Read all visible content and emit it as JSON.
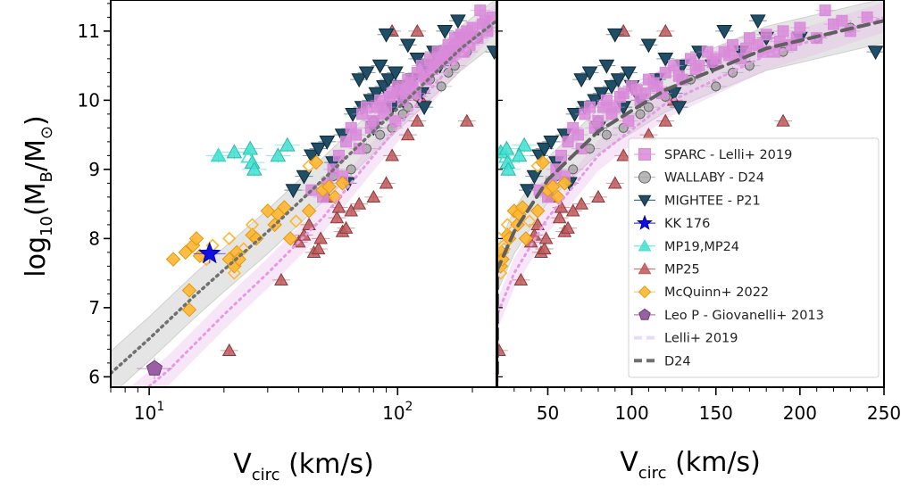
{
  "figure": {
    "ylabel_main": "log",
    "ylabel_sub": "10",
    "ylabel_paren": "(M",
    "ylabel_b": "B",
    "ylabel_slash": "/M",
    "ylabel_sun": "⊙",
    "ylabel_close": ")"
  },
  "chart_data": [
    {
      "type": "scatter",
      "panel": "left",
      "xscale": "log",
      "xlim": [
        7,
        250
      ],
      "ylim": [
        5.85,
        11.45
      ],
      "xlabel_main": "V",
      "xlabel_sub": "circ",
      "xlabel_unit": " (km/s)",
      "xticks": [
        10,
        100
      ],
      "xtick_labels": [
        {
          "base": "10",
          "exp": "1"
        },
        {
          "base": "10",
          "exp": "2"
        }
      ],
      "yticks": [
        6,
        7,
        8,
        9,
        10,
        11
      ],
      "ytick_labels": [
        "6",
        "7",
        "8",
        "9",
        "10",
        "11"
      ],
      "grid": false
    },
    {
      "type": "scatter",
      "panel": "right",
      "xscale": "linear",
      "xlim": [
        20,
        250
      ],
      "ylim": [
        5.85,
        11.45
      ],
      "xlabel_main": "V",
      "xlabel_sub": "circ",
      "xlabel_unit": " (km/s)",
      "xticks": [
        50,
        100,
        150,
        200,
        250
      ],
      "xtick_labels": [
        "50",
        "100",
        "150",
        "200",
        "250"
      ],
      "grid": false,
      "legend_position": "lower-right"
    }
  ],
  "series": [
    {
      "name": "SPARC - Lelli+ 2019",
      "marker": "square",
      "color": "#d98ad9"
    },
    {
      "name": "WALLABY - D24",
      "marker": "circle",
      "color": "#a6a6a6"
    },
    {
      "name": "MIGHTEE - P21",
      "marker": "triangle-down",
      "color": "#1f4e66"
    },
    {
      "name": "KK 176",
      "marker": "star",
      "color": "#1010e0"
    },
    {
      "name": "MP19,MP24",
      "marker": "triangle-up",
      "color": "#40e0d0"
    },
    {
      "name": "MP25",
      "marker": "triangle-up",
      "color": "#c0585a"
    },
    {
      "name": "McQuinn+ 2022",
      "marker": "diamond",
      "color": "#ffb733"
    },
    {
      "name": "Leo P - Giovanelli+ 2013",
      "marker": "pentagon",
      "color": "#9b5fa3"
    },
    {
      "name": "Lelli+ 2019",
      "marker": "dashed-line",
      "color": "#e6dcf5"
    },
    {
      "name": "D24",
      "marker": "dashed-line",
      "color": "#707070"
    }
  ],
  "data_points": {
    "kk176": [
      [
        17.5,
        7.78
      ]
    ],
    "leop": [
      [
        10.5,
        6.12
      ]
    ],
    "mp19": [
      [
        19,
        9.2
      ],
      [
        22,
        9.25
      ],
      [
        25.5,
        9.3
      ],
      [
        26,
        9.1
      ],
      [
        26.5,
        9.0
      ],
      [
        36,
        9.35
      ],
      [
        33,
        9.2
      ]
    ],
    "mp19_open": [
      [
        19,
        9.2
      ],
      [
        25,
        9.18
      ]
    ],
    "mcquinn": [
      [
        12.5,
        7.7
      ],
      [
        14,
        7.8
      ],
      [
        14.5,
        7.25
      ],
      [
        14.5,
        6.97
      ],
      [
        15,
        7.9
      ],
      [
        15.5,
        8.0
      ],
      [
        16,
        7.75
      ],
      [
        21,
        7.7
      ],
      [
        22,
        7.6
      ],
      [
        22.5,
        7.8
      ],
      [
        23,
        7.7
      ],
      [
        26,
        8.05
      ],
      [
        27,
        8.0
      ],
      [
        30,
        8.4
      ],
      [
        32,
        8.2
      ],
      [
        33,
        8.35
      ],
      [
        35,
        8.45
      ],
      [
        37,
        8.0
      ],
      [
        44,
        8.4
      ],
      [
        47,
        9.1
      ],
      [
        50,
        8.7
      ],
      [
        53,
        8.75
      ],
      [
        56,
        8.6
      ],
      [
        60,
        8.8
      ]
    ],
    "mcquinn_open": [
      [
        17,
        7.7
      ],
      [
        18,
        7.9
      ],
      [
        21,
        8.0
      ],
      [
        22,
        7.5
      ],
      [
        24,
        7.85
      ],
      [
        26,
        8.2
      ],
      [
        39,
        8.25
      ],
      [
        44,
        9.05
      ]
    ],
    "mp25": [
      [
        21,
        6.38
      ],
      [
        34,
        7.4
      ],
      [
        40,
        7.95
      ],
      [
        42,
        8.05
      ],
      [
        44,
        8.2
      ],
      [
        46,
        7.8
      ],
      [
        48,
        7.85
      ],
      [
        49,
        8.0
      ],
      [
        52,
        8.6
      ],
      [
        57,
        8.3
      ],
      [
        58,
        8.45
      ],
      [
        60,
        8.1
      ],
      [
        62,
        8.15
      ],
      [
        65,
        8.4
      ],
      [
        70,
        8.5
      ],
      [
        80,
        8.6
      ],
      [
        90,
        8.8
      ],
      [
        95,
        9.2
      ],
      [
        110,
        9.5
      ],
      [
        120,
        9.7
      ],
      [
        190,
        9.7
      ],
      [
        120,
        11.0
      ],
      [
        95,
        11.0
      ],
      [
        125,
        10.0
      ]
    ],
    "mightee": [
      [
        38,
        8.7
      ],
      [
        42,
        8.9
      ],
      [
        45,
        9.2
      ],
      [
        48,
        9.3
      ],
      [
        52,
        9.4
      ],
      [
        55,
        9.1
      ],
      [
        60,
        9.5
      ],
      [
        63,
        8.8
      ],
      [
        66,
        9.8
      ],
      [
        70,
        10.3
      ],
      [
        72,
        9.9
      ],
      [
        75,
        10.4
      ],
      [
        78,
        10.0
      ],
      [
        80,
        9.6
      ],
      [
        82,
        10.1
      ],
      [
        85,
        10.5
      ],
      [
        88,
        10.2
      ],
      [
        90,
        10.95
      ],
      [
        92,
        10.3
      ],
      [
        95,
        9.9
      ],
      [
        98,
        10.4
      ],
      [
        100,
        10.2
      ],
      [
        105,
        10.0
      ],
      [
        110,
        10.8
      ],
      [
        115,
        10.3
      ],
      [
        120,
        10.6
      ],
      [
        125,
        10.1
      ],
      [
        128,
        9.9
      ],
      [
        130,
        10.5
      ],
      [
        140,
        10.7
      ],
      [
        148,
        10.5
      ],
      [
        155,
        11.0
      ],
      [
        165,
        10.7
      ],
      [
        175,
        11.15
      ],
      [
        180,
        10.9
      ],
      [
        200,
        10.9
      ],
      [
        245,
        10.7
      ]
    ],
    "wallaby": [
      [
        55,
        8.9
      ],
      [
        65,
        9.0
      ],
      [
        75,
        9.3
      ],
      [
        85,
        9.5
      ],
      [
        95,
        9.6
      ],
      [
        110,
        9.9
      ],
      [
        120,
        10.05
      ],
      [
        135,
        10.3
      ],
      [
        150,
        10.2
      ],
      [
        170,
        10.5
      ],
      [
        190,
        10.7
      ],
      [
        210,
        10.9
      ],
      [
        230,
        11.05
      ],
      [
        80,
        9.7
      ],
      [
        105,
        9.8
      ],
      [
        160,
        10.4
      ]
    ],
    "sparc": [
      [
        45,
        8.7
      ],
      [
        50,
        8.6
      ],
      [
        55,
        9.0
      ],
      [
        58,
        9.2
      ],
      [
        62,
        9.4
      ],
      [
        65,
        9.6
      ],
      [
        68,
        9.5
      ],
      [
        72,
        9.8
      ],
      [
        75,
        9.9
      ],
      [
        80,
        9.7
      ],
      [
        85,
        10.0
      ],
      [
        90,
        9.9
      ],
      [
        95,
        10.1
      ],
      [
        100,
        10.2
      ],
      [
        105,
        10.0
      ],
      [
        110,
        10.3
      ],
      [
        115,
        10.2
      ],
      [
        120,
        10.4
      ],
      [
        125,
        10.5
      ],
      [
        130,
        10.3
      ],
      [
        135,
        10.6
      ],
      [
        140,
        10.5
      ],
      [
        145,
        10.7
      ],
      [
        150,
        10.6
      ],
      [
        155,
        10.7
      ],
      [
        160,
        10.8
      ],
      [
        165,
        10.6
      ],
      [
        170,
        10.9
      ],
      [
        175,
        10.8
      ],
      [
        180,
        10.95
      ],
      [
        185,
        10.7
      ],
      [
        190,
        11.0
      ],
      [
        195,
        10.8
      ],
      [
        200,
        11.05
      ],
      [
        210,
        10.9
      ],
      [
        220,
        11.1
      ],
      [
        230,
        11.0
      ],
      [
        240,
        11.2
      ],
      [
        215,
        11.3
      ],
      [
        225,
        11.15
      ],
      [
        70,
        9.3
      ],
      [
        78,
        9.6
      ],
      [
        88,
        9.8
      ],
      [
        98,
        9.7
      ],
      [
        108,
        10.1
      ],
      [
        118,
        10.1
      ],
      [
        128,
        10.35
      ],
      [
        138,
        10.45
      ],
      [
        148,
        10.55
      ],
      [
        158,
        10.65
      ],
      [
        168,
        10.75
      ],
      [
        178,
        10.7
      ],
      [
        188,
        10.85
      ],
      [
        198,
        10.9
      ],
      [
        60,
        8.9
      ],
      [
        52,
        8.8
      ],
      [
        83,
        9.9
      ],
      [
        93,
        10.05
      ],
      [
        103,
        10.15
      ],
      [
        113,
        10.25
      ]
    ],
    "lelli_line": [
      [
        7,
        5.4
      ],
      [
        12,
        6.1
      ],
      [
        20,
        6.9
      ],
      [
        30,
        7.5
      ],
      [
        50,
        8.3
      ],
      [
        80,
        9.2
      ],
      [
        120,
        9.95
      ],
      [
        180,
        10.65
      ],
      [
        250,
        11.2
      ]
    ],
    "d24_line": [
      [
        7,
        6.05
      ],
      [
        10,
        6.55
      ],
      [
        15,
        7.15
      ],
      [
        20,
        7.55
      ],
      [
        30,
        8.1
      ],
      [
        50,
        8.85
      ],
      [
        80,
        9.55
      ],
      [
        120,
        10.15
      ],
      [
        180,
        10.75
      ],
      [
        250,
        11.15
      ]
    ]
  }
}
